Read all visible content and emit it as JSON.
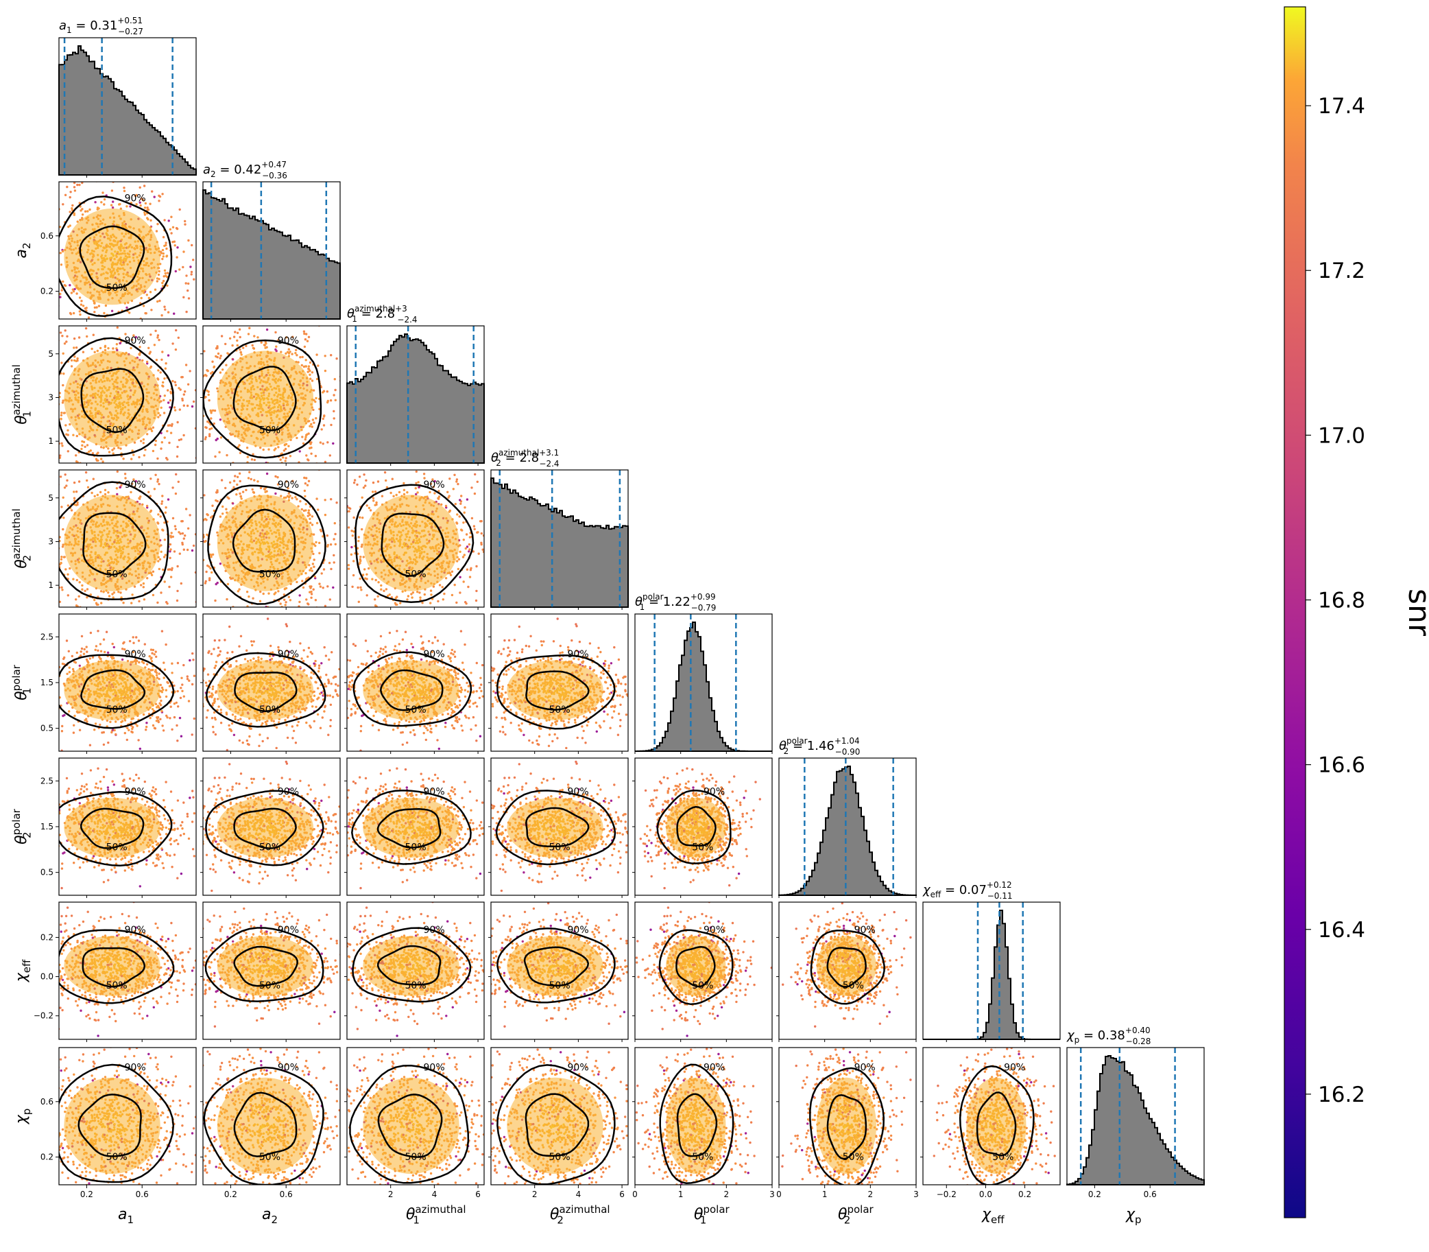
{
  "chart_data": {
    "type": "corner",
    "parameters": [
      {
        "key": "a1",
        "label_base": "a",
        "label_sub": "1",
        "label_sup": "",
        "range": [
          0,
          0.99
        ],
        "ticks": [
          0.2,
          0.6
        ],
        "tick_labels": [
          "0.2",
          "0.6"
        ],
        "title": {
          "name_base": "a",
          "name_sub": "1",
          "name_sup": "",
          "median": "0.31",
          "plus": "+0.51",
          "minus": "−0.27"
        },
        "hist_shape": "decreasing",
        "quantiles": [
          0.04,
          0.31,
          0.82
        ]
      },
      {
        "key": "a2",
        "label_base": "a",
        "label_sub": "2",
        "label_sup": "",
        "range": [
          0,
          0.99
        ],
        "ticks": [
          0.2,
          0.6
        ],
        "tick_labels": [
          "0.2",
          "0.6"
        ],
        "title": {
          "name_base": "a",
          "name_sub": "2",
          "name_sup": "",
          "median": "0.42",
          "plus": "+0.47",
          "minus": "−0.36"
        },
        "hist_shape": "slow_decreasing",
        "quantiles": [
          0.06,
          0.42,
          0.89
        ]
      },
      {
        "key": "theta1_az",
        "label_base": "θ",
        "label_sub": "1",
        "label_sup": "azimuthal",
        "range": [
          0,
          6.28
        ],
        "ticks": [
          1,
          3,
          5
        ],
        "tick_labels": [
          "1",
          "3",
          "5"
        ],
        "x_ticks": [
          2,
          4,
          6
        ],
        "x_tick_labels": [
          "2",
          "4",
          "6"
        ],
        "title": {
          "name_base": "θ",
          "name_sub": "1",
          "name_sup": "azimuthal",
          "median": "2.8",
          "plus": "+3",
          "minus": "−2.4"
        },
        "hist_shape": "flat_hump",
        "quantiles": [
          0.4,
          2.8,
          5.8
        ]
      },
      {
        "key": "theta2_az",
        "label_base": "θ",
        "label_sub": "2",
        "label_sup": "azimuthal",
        "range": [
          0,
          6.28
        ],
        "ticks": [
          1,
          3,
          5
        ],
        "tick_labels": [
          "1",
          "3",
          "5"
        ],
        "x_ticks": [
          2,
          4,
          6
        ],
        "x_tick_labels": [
          "2",
          "4",
          "6"
        ],
        "title": {
          "name_base": "θ",
          "name_sub": "2",
          "name_sup": "azimuthal",
          "median": "2.8",
          "plus": "+3.1",
          "minus": "−2.4"
        },
        "hist_shape": "flat_decreasing",
        "quantiles": [
          0.4,
          2.8,
          5.9
        ]
      },
      {
        "key": "theta1_pol",
        "label_base": "θ",
        "label_sub": "1",
        "label_sup": "polar",
        "range": [
          0,
          3.0
        ],
        "ticks": [
          0.5,
          1.5,
          2.5
        ],
        "tick_labels": [
          "0.5",
          "1.5",
          "2.5"
        ],
        "x_ticks": [
          0,
          1,
          2,
          3
        ],
        "x_tick_labels": [
          "0",
          "1",
          "2",
          "3"
        ],
        "title": {
          "name_base": "θ",
          "name_sub": "1",
          "name_sup": "polar",
          "median": "1.22",
          "plus": "+0.99",
          "minus": "−0.79"
        },
        "hist_shape": "peaked_1.2",
        "quantiles": [
          0.43,
          1.22,
          2.21
        ]
      },
      {
        "key": "theta2_pol",
        "label_base": "θ",
        "label_sub": "2",
        "label_sup": "polar",
        "range": [
          0,
          3.0
        ],
        "ticks": [
          0.5,
          1.5,
          2.5
        ],
        "tick_labels": [
          "0.5",
          "1.5",
          "2.5"
        ],
        "x_ticks": [
          0,
          1,
          2,
          3
        ],
        "x_tick_labels": [
          "0",
          "1",
          "2",
          "3"
        ],
        "title": {
          "name_base": "θ",
          "name_sub": "2",
          "name_sup": "polar",
          "median": "1.46",
          "plus": "+1.04",
          "minus": "−0.90"
        },
        "hist_shape": "peaked_1.5",
        "quantiles": [
          0.56,
          1.46,
          2.5
        ]
      },
      {
        "key": "chi_eff",
        "label_base": "χ",
        "label_sub": "eff",
        "label_sup": "",
        "range": [
          -0.32,
          0.38
        ],
        "ticks": [
          -0.2,
          0.0,
          0.2
        ],
        "tick_labels": [
          "−0.2",
          "0.0",
          "0.2"
        ],
        "x_ticks": [
          -0.2,
          0.0,
          0.2
        ],
        "x_tick_labels": [
          "−0.2",
          "0.0",
          "0.2"
        ],
        "title": {
          "name_base": "χ",
          "name_sub": "eff",
          "name_sup": "",
          "median": "0.07",
          "plus": "+0.12",
          "minus": "−0.11"
        },
        "hist_shape": "narrow_0.07",
        "quantiles": [
          -0.04,
          0.07,
          0.19
        ]
      },
      {
        "key": "chi_p",
        "label_base": "χ",
        "label_sub": "p",
        "label_sup": "",
        "range": [
          0,
          0.99
        ],
        "ticks": [
          0.2,
          0.6
        ],
        "tick_labels": [
          "0.2",
          "0.6"
        ],
        "title": {
          "name_base": "χ",
          "name_sub": "p",
          "name_sup": "",
          "median": "0.38",
          "plus": "+0.40",
          "minus": "−0.28"
        },
        "hist_shape": "skewed_0.35",
        "quantiles": [
          0.1,
          0.38,
          0.78
        ]
      }
    ],
    "contour_levels": [
      "50%",
      "90%"
    ],
    "scatter_colormap": "plasma",
    "colorbar": {
      "label": "snr",
      "range": [
        16.05,
        17.52
      ],
      "ticks": [
        16.2,
        16.4,
        16.6,
        16.8,
        17.0,
        17.2,
        17.4
      ],
      "tick_labels": [
        "16.2",
        "16.4",
        "16.6",
        "16.8",
        "17.0",
        "17.2",
        "17.4"
      ]
    },
    "histogram_fill": "#808080",
    "quantile_line_color": "#1f77b4"
  }
}
